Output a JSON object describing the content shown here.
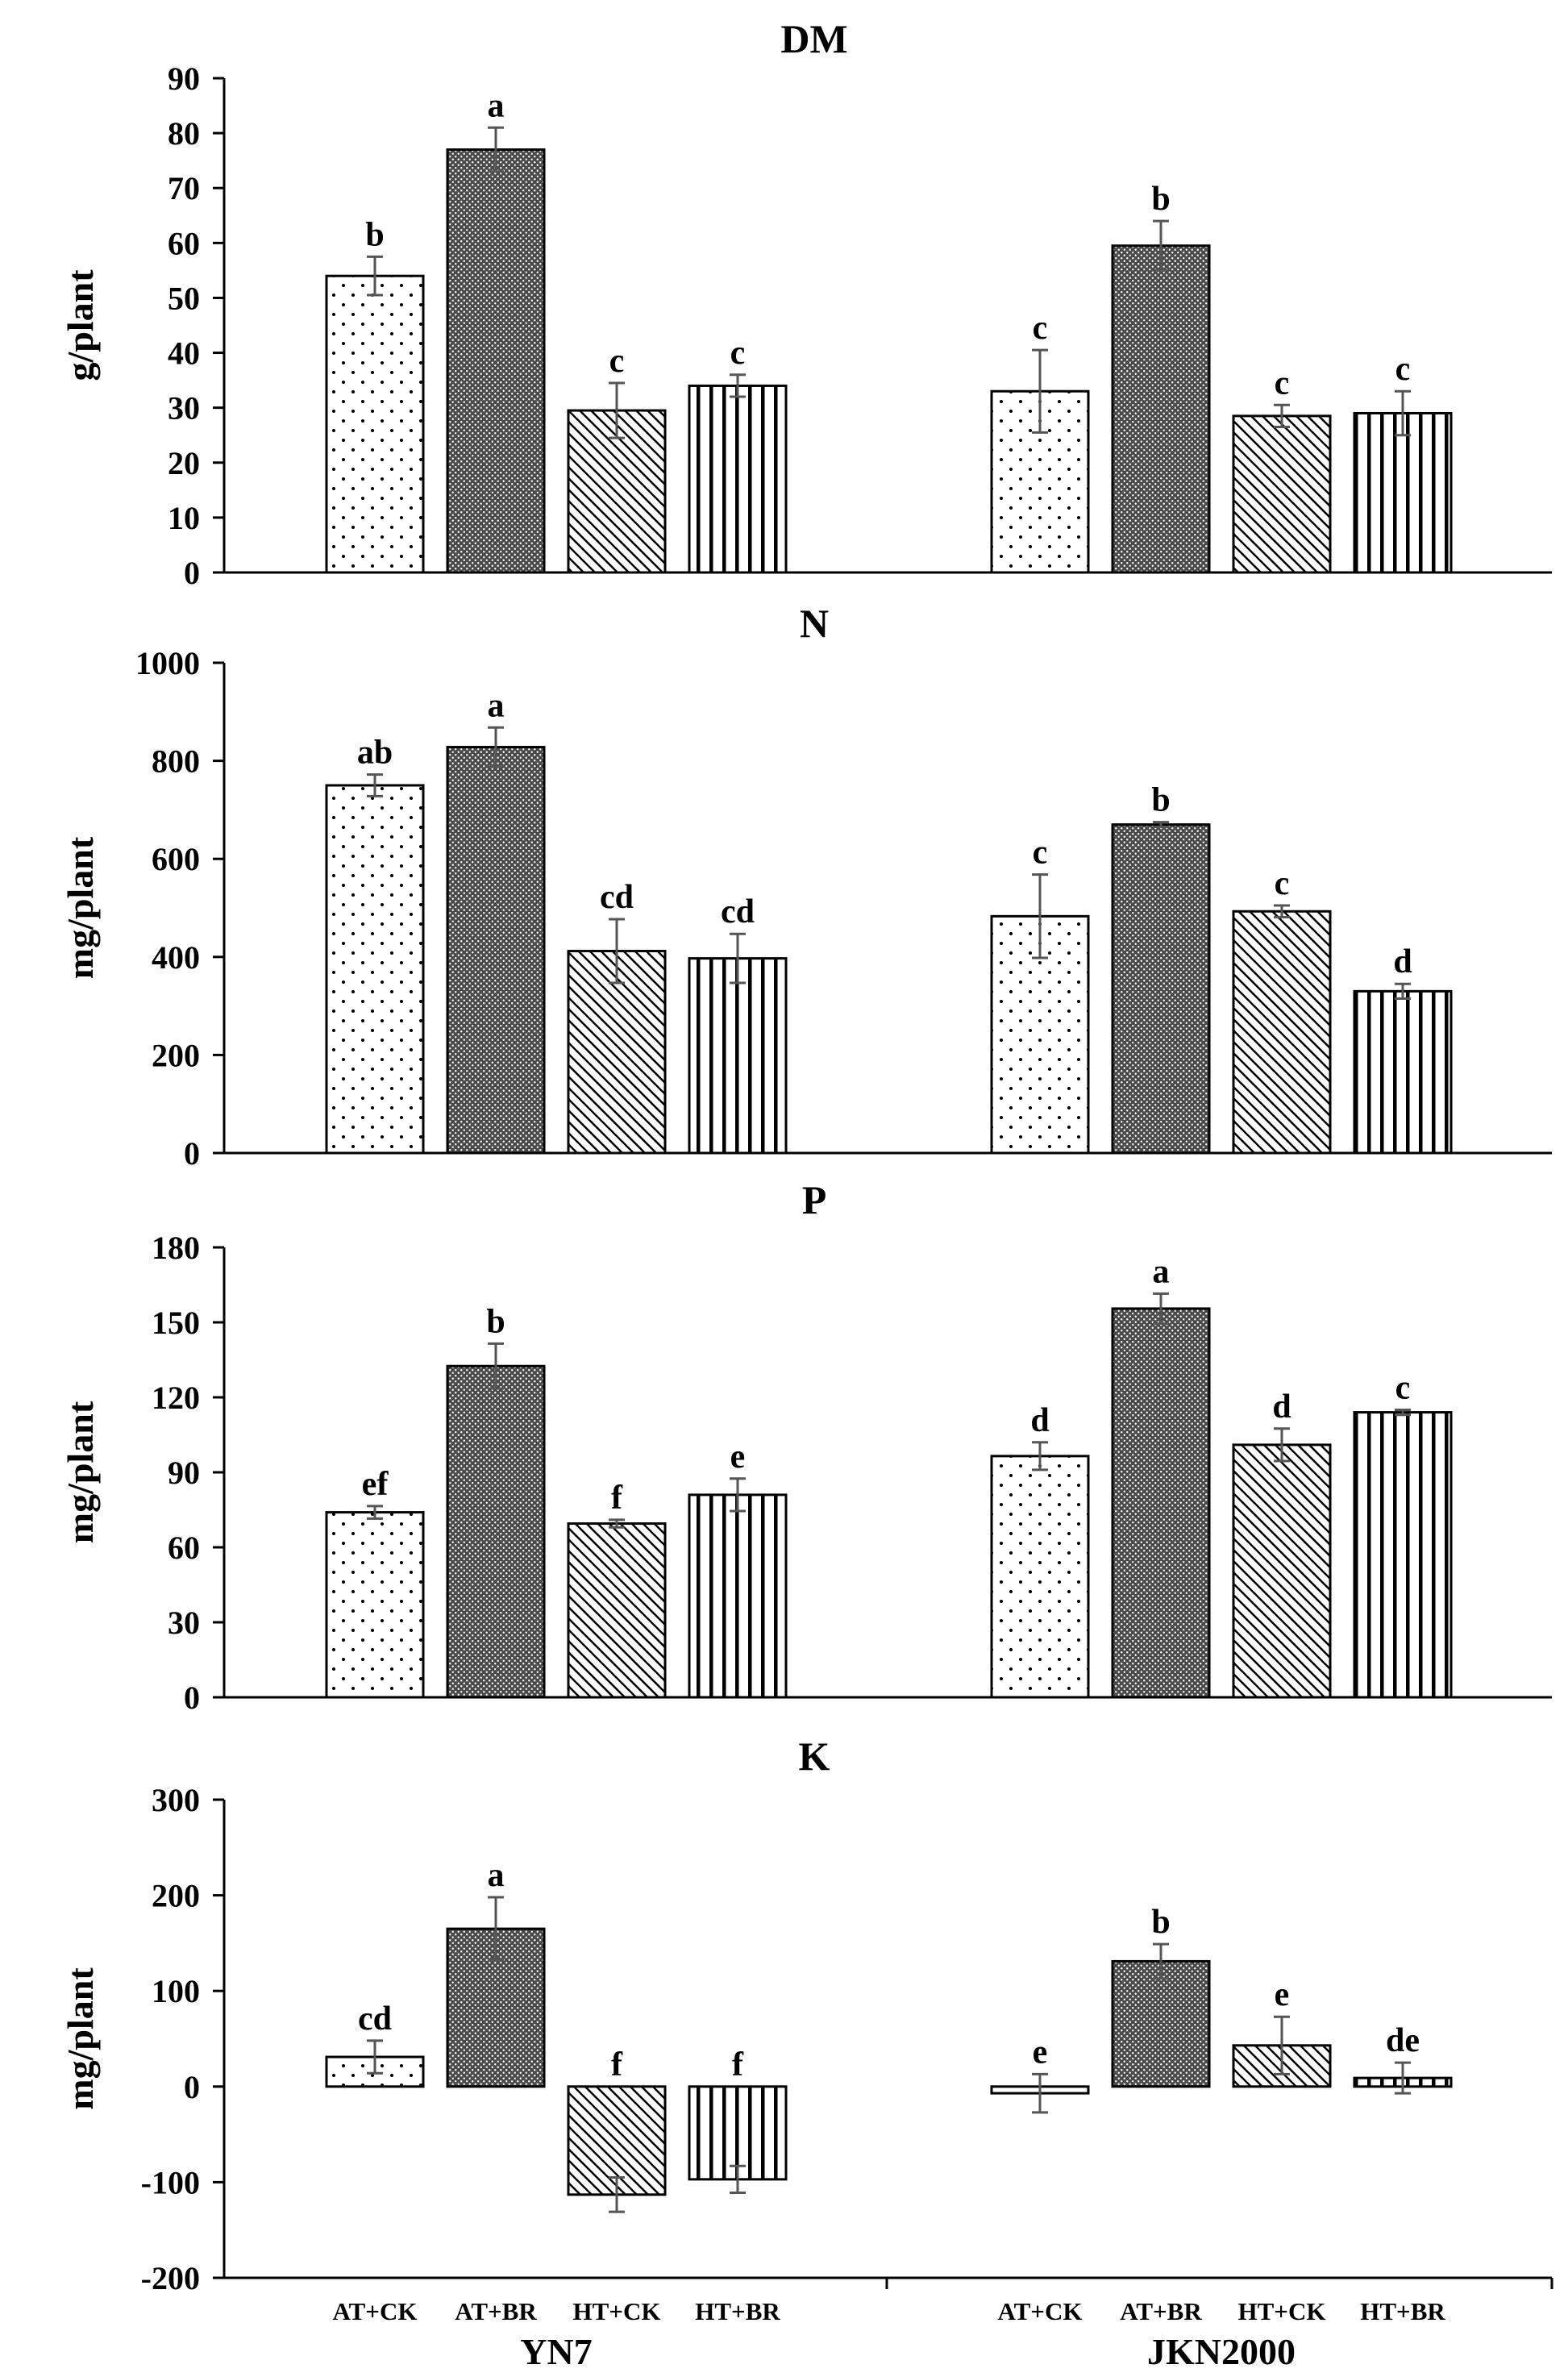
{
  "chart_data": {
    "type": "bar",
    "groups": [
      "YN7",
      "JKN2000"
    ],
    "treatments": [
      "AT+CK",
      "AT+BR",
      "HT+CK",
      "HT+BR"
    ],
    "panels": [
      {
        "title": "DM",
        "ylabel": "g/plant",
        "ylim": [
          0,
          90
        ],
        "yticks": [
          0,
          10,
          20,
          30,
          40,
          50,
          60,
          70,
          80,
          90
        ],
        "ytick_labels": [
          "0",
          "10",
          "20",
          "30",
          "40",
          "50",
          "60",
          "70",
          "80",
          "90"
        ],
        "series": [
          {
            "group": "YN7",
            "values": [
              54,
              77,
              29.5,
              34
            ],
            "errors": [
              3.5,
              4,
              5,
              2
            ],
            "letters": [
              "b",
              "a",
              "c",
              "c"
            ]
          },
          {
            "group": "JKN2000",
            "values": [
              33,
              59.5,
              28.5,
              29
            ],
            "errors": [
              7.5,
              4.5,
              2,
              4
            ],
            "letters": [
              "c",
              "b",
              "c",
              "c"
            ]
          }
        ]
      },
      {
        "title": "N",
        "ylabel": "mg/plant",
        "ylim": [
          0,
          1000
        ],
        "yticks": [
          0,
          200,
          400,
          600,
          800,
          1000
        ],
        "ytick_labels": [
          "0",
          "200",
          "400",
          "600",
          "800",
          "1000"
        ],
        "series": [
          {
            "group": "YN7",
            "values": [
              750,
              828,
              412,
              397
            ],
            "errors": [
              22,
              40,
              65,
              50
            ],
            "letters": [
              "ab",
              "a",
              "cd",
              "cd"
            ]
          },
          {
            "group": "JKN2000",
            "values": [
              483,
              670,
              493,
              330
            ],
            "errors": [
              85,
              5,
              12,
              15
            ],
            "letters": [
              "c",
              "b",
              "c",
              "d"
            ]
          }
        ]
      },
      {
        "title": "P",
        "ylabel": "mg/plant",
        "ylim": [
          0,
          180
        ],
        "yticks": [
          0,
          30,
          60,
          90,
          120,
          150,
          180
        ],
        "ytick_labels": [
          "0",
          "30",
          "60",
          "90",
          "120",
          "150",
          "180"
        ],
        "series": [
          {
            "group": "YN7",
            "values": [
              74,
              132.5,
              69.5,
              81
            ],
            "errors": [
              2.5,
              9,
              1.5,
              6.5
            ],
            "letters": [
              "ef",
              "b",
              "f",
              "e"
            ]
          },
          {
            "group": "JKN2000",
            "values": [
              96.5,
              155.5,
              101,
              114
            ],
            "errors": [
              5.5,
              6,
              6.5,
              1
            ],
            "letters": [
              "d",
              "a",
              "d",
              "c"
            ]
          }
        ]
      },
      {
        "title": "K",
        "ylabel": "mg/plant",
        "ylim": [
          -200,
          300
        ],
        "yticks": [
          -200,
          -100,
          0,
          100,
          200,
          300
        ],
        "ytick_labels": [
          "-200",
          "-100",
          "0",
          "100",
          "200",
          "300"
        ],
        "series": [
          {
            "group": "YN7",
            "values": [
              31,
              165,
              -113,
              -97
            ],
            "errors": [
              17,
              33,
              18,
              14
            ],
            "letters": [
              "cd",
              "a",
              "f",
              "f"
            ]
          },
          {
            "group": "JKN2000",
            "values": [
              -7,
              131,
              43,
              9
            ],
            "errors": [
              20,
              18,
              30,
              16
            ],
            "letters": [
              "e",
              "b",
              "e",
              "de"
            ]
          }
        ]
      }
    ]
  }
}
